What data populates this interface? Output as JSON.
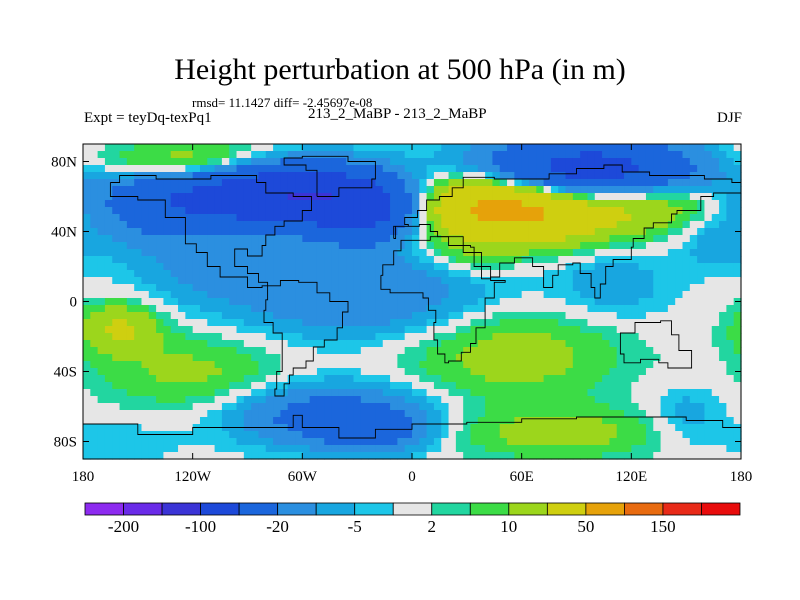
{
  "title": "Height perturbation at 500 hPa (in m)",
  "stats": {
    "rmsd": "rmsd= 11.1427",
    "diff": "diff= -2.45697e-08"
  },
  "experiment": "Expt = teyDq-texPq1",
  "cases": "213_2_MaBP - 213_2_MaBP",
  "season": "DJF",
  "chart_data": {
    "type": "heatmap",
    "title": "Height perturbation at 500 hPa (in m)",
    "variable": "geopotential height perturbation",
    "units": "m",
    "level_hPa": 500,
    "xlim": [
      -180,
      180
    ],
    "ylim": [
      -90,
      90
    ],
    "x_ticks": [
      {
        "value": -180,
        "label": "180"
      },
      {
        "value": -120,
        "label": "120W"
      },
      {
        "value": -60,
        "label": "60W"
      },
      {
        "value": 0,
        "label": "0"
      },
      {
        "value": 60,
        "label": "60E"
      },
      {
        "value": 120,
        "label": "120E"
      },
      {
        "value": 180,
        "label": "180"
      }
    ],
    "y_ticks": [
      {
        "value": 80,
        "label": "80N"
      },
      {
        "value": 40,
        "label": "40N"
      },
      {
        "value": 0,
        "label": "0"
      },
      {
        "value": -40,
        "label": "40S"
      },
      {
        "value": -80,
        "label": "80S"
      }
    ],
    "colorbar": {
      "levels": [
        -200,
        -150,
        -100,
        -50,
        -20,
        -10,
        -5,
        -2,
        2,
        5,
        10,
        20,
        50,
        100,
        150,
        200
      ],
      "labeled": [
        {
          "value": -200,
          "label": "-200"
        },
        {
          "value": -100,
          "label": "-100"
        },
        {
          "value": -20,
          "label": "-20"
        },
        {
          "value": -5,
          "label": "-5"
        },
        {
          "value": 2,
          "label": "2"
        },
        {
          "value": 10,
          "label": "10"
        },
        {
          "value": 50,
          "label": "50"
        },
        {
          "value": 150,
          "label": "150"
        }
      ],
      "colors": [
        "#8d2bf0",
        "#6a2be8",
        "#3b34d6",
        "#1d49d9",
        "#1b66dc",
        "#2b8fe0",
        "#18a6e0",
        "#1dc6e8",
        "#e6e6e6",
        "#22d6a0",
        "#3cdc46",
        "#9cd61c",
        "#cfcf10",
        "#e6a20a",
        "#e86b10",
        "#e82a18",
        "#e80c0c"
      ]
    },
    "anomaly_centers": [
      {
        "lon": -75,
        "lat": 62,
        "value": -100,
        "sx": 38,
        "sy": 12
      },
      {
        "lon": -25,
        "lat": 52,
        "value": -60,
        "sx": 22,
        "sy": 12
      },
      {
        "lon": -140,
        "lat": 55,
        "value": -25,
        "sx": 26,
        "sy": 16
      },
      {
        "lon": 95,
        "lat": 74,
        "value": -80,
        "sx": 42,
        "sy": 12
      },
      {
        "lon": 55,
        "lat": 55,
        "value": 70,
        "sx": 40,
        "sy": 14
      },
      {
        "lon": -105,
        "lat": 75,
        "value": 25,
        "sx": 30,
        "sy": 10
      },
      {
        "lon": 135,
        "lat": 60,
        "value": 20,
        "sx": 25,
        "sy": 12
      },
      {
        "lon": -145,
        "lat": 80,
        "value": 12,
        "sx": 35,
        "sy": 8
      },
      {
        "lon": -30,
        "lat": 5,
        "value": -20,
        "sx": 50,
        "sy": 18
      },
      {
        "lon": -110,
        "lat": 20,
        "value": -9,
        "sx": 30,
        "sy": 14
      },
      {
        "lon": 110,
        "lat": 10,
        "value": -9,
        "sx": 22,
        "sy": 15
      },
      {
        "lon": 165,
        "lat": 35,
        "value": -8,
        "sx": 15,
        "sy": 12
      },
      {
        "lon": -160,
        "lat": -15,
        "value": 22,
        "sx": 15,
        "sy": 10
      },
      {
        "lon": -120,
        "lat": -40,
        "value": 12,
        "sx": 35,
        "sy": 15
      },
      {
        "lon": 55,
        "lat": -30,
        "value": 15,
        "sx": 40,
        "sy": 18
      },
      {
        "lon": 30,
        "lat": 25,
        "value": 7,
        "sx": 18,
        "sy": 8
      },
      {
        "lon": -45,
        "lat": -65,
        "value": -30,
        "sx": 35,
        "sy": 12
      },
      {
        "lon": -20,
        "lat": -75,
        "value": -20,
        "sx": 20,
        "sy": 8
      },
      {
        "lon": 150,
        "lat": -65,
        "value": -8,
        "sx": 15,
        "sy": 12
      },
      {
        "lon": 80,
        "lat": -75,
        "value": 14,
        "sx": 40,
        "sy": 10
      },
      {
        "lon": -160,
        "lat": -80,
        "value": -4,
        "sx": 25,
        "sy": 10
      }
    ]
  }
}
